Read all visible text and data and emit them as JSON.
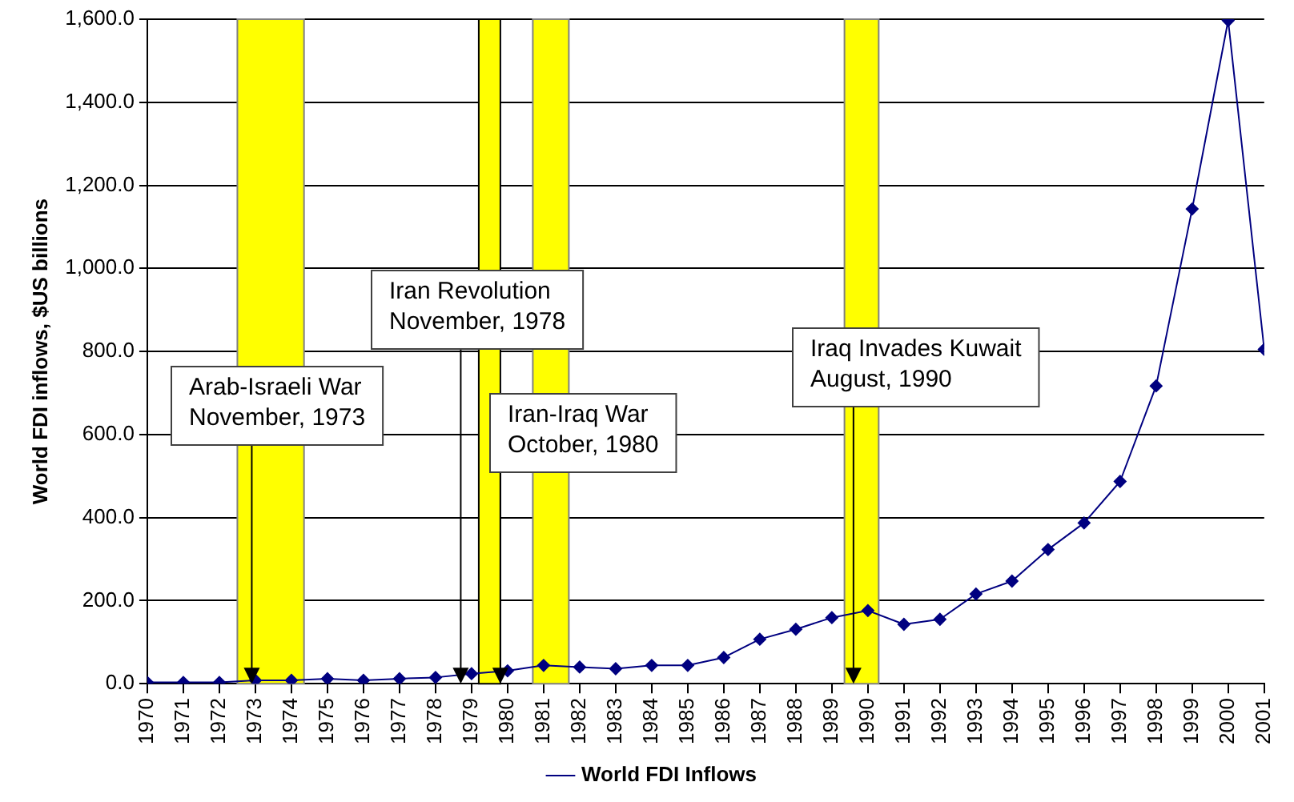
{
  "chart_data": {
    "type": "line",
    "ylabel": "World FDI inflows, $US billions",
    "x": [
      1970,
      1971,
      1972,
      1973,
      1974,
      1975,
      1976,
      1977,
      1978,
      1979,
      1980,
      1981,
      1982,
      1983,
      1984,
      1985,
      1986,
      1987,
      1988,
      1989,
      1990,
      1991,
      1992,
      1993,
      1994,
      1995,
      1996,
      1997,
      1998,
      1999,
      2000,
      2001
    ],
    "series": [
      {
        "name": "World FDI Inflows",
        "color": "#000080",
        "values": [
          3,
          3,
          3,
          8,
          8,
          12,
          8,
          12,
          15,
          24,
          31,
          44,
          40,
          36,
          44,
          44,
          63,
          107,
          131,
          159,
          176,
          143,
          155,
          216,
          247,
          323,
          387,
          487,
          717,
          1143,
          1597,
          805
        ]
      }
    ],
    "xlim": [
      1970,
      2001
    ],
    "xticks": [
      1970,
      1971,
      1972,
      1973,
      1974,
      1975,
      1976,
      1977,
      1978,
      1979,
      1980,
      1981,
      1982,
      1983,
      1984,
      1985,
      1986,
      1987,
      1988,
      1989,
      1990,
      1991,
      1992,
      1993,
      1994,
      1995,
      1996,
      1997,
      1998,
      1999,
      2000,
      2001
    ],
    "ylim": [
      0,
      1600
    ],
    "yticks": [
      {
        "value": 0,
        "label": "0.0"
      },
      {
        "value": 200,
        "label": "200.0"
      },
      {
        "value": 400,
        "label": "400.0"
      },
      {
        "value": 600,
        "label": "600.0"
      },
      {
        "value": 800,
        "label": "800.0"
      },
      {
        "value": 1000,
        "label": "1,000.0"
      },
      {
        "value": 1200,
        "label": "1,200.0"
      },
      {
        "value": 1400,
        "label": "1,400.0"
      },
      {
        "value": 1600,
        "label": "1,600.0"
      }
    ],
    "bands": [
      {
        "axis": "x",
        "from": 1972.5,
        "to": 1974.35,
        "color": "#ffff00"
      },
      {
        "axis": "x",
        "from": 1979.2,
        "to": 1979.8,
        "color": "#ffff00"
      },
      {
        "axis": "x",
        "from": 1980.7,
        "to": 1981.7,
        "color": "#ffff00"
      },
      {
        "axis": "x",
        "from": 1989.35,
        "to": 1990.3,
        "color": "#ffff00"
      }
    ],
    "annotations": [
      {
        "text": "Arab-Israeli War\nNovember, 1973",
        "x": 1972.9,
        "y": 0
      },
      {
        "text": "Iran Revolution\nNovember, 1978",
        "x": 1978.7,
        "y": 0
      },
      {
        "text": "Iran-Iraq War\nOctober, 1980",
        "x": 1979.8,
        "y": 0
      },
      {
        "text": "Iraq Invades Kuwait\nAugust, 1990",
        "x": 1989.6,
        "y": 0
      }
    ],
    "grid": "y",
    "legend": "bottom",
    "marker": "diamond",
    "line_style": "solid"
  }
}
